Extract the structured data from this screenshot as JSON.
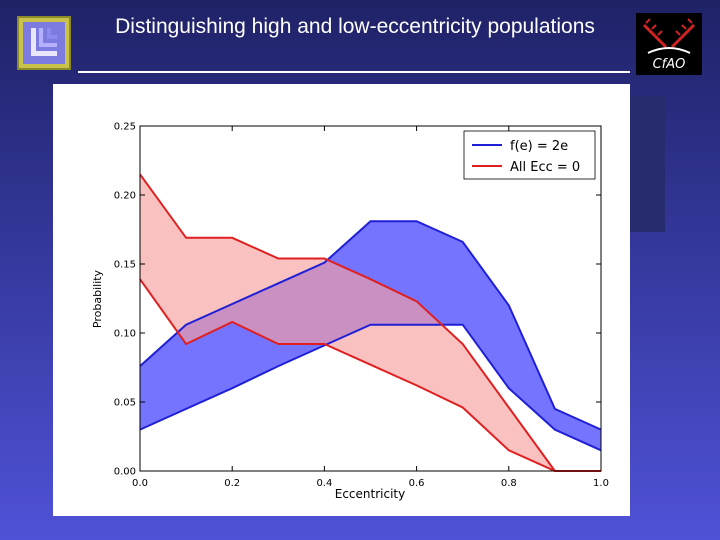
{
  "slide": {
    "title": "Distinguishing high and low-eccentricity populations"
  },
  "logos": {
    "left_icon": "llnl-logo-icon",
    "right_icon": "cfao-logo-icon",
    "right_text": "CfAO"
  },
  "chart_data": {
    "type": "area",
    "xlabel": "Eccentricity",
    "ylabel": "Probability",
    "xlim": [
      0.0,
      1.0
    ],
    "ylim": [
      0.0,
      0.25
    ],
    "xticks": [
      "0.0",
      "0.2",
      "0.4",
      "0.6",
      "0.8",
      "1.0"
    ],
    "yticks": [
      "0.00",
      "0.05",
      "0.10",
      "0.15",
      "0.20",
      "0.25"
    ],
    "grid": false,
    "legend_position": "top-right",
    "series": [
      {
        "name": "f(e) = 2e",
        "color": "#1f1fd6",
        "fill": "#5c5cff",
        "fill_opacity": 0.85,
        "x": [
          0.0,
          0.1,
          0.2,
          0.3,
          0.4,
          0.5,
          0.6,
          0.7,
          0.8,
          0.9,
          1.0
        ],
        "upper": [
          0.076,
          0.106,
          0.121,
          0.136,
          0.151,
          0.181,
          0.181,
          0.166,
          0.12,
          0.045,
          0.03
        ],
        "lower": [
          0.03,
          0.045,
          0.06,
          0.076,
          0.091,
          0.106,
          0.106,
          0.106,
          0.06,
          0.03,
          0.015
        ]
      },
      {
        "name": "All Ecc = 0",
        "color": "#e02020",
        "fill": "#f8a0a0",
        "fill_opacity": 0.65,
        "x": [
          0.0,
          0.1,
          0.2,
          0.3,
          0.4,
          0.5,
          0.6,
          0.7,
          0.8,
          0.9,
          1.0
        ],
        "upper": [
          0.215,
          0.169,
          0.169,
          0.154,
          0.154,
          0.139,
          0.123,
          0.092,
          0.046,
          0.0,
          0.0
        ],
        "lower": [
          0.139,
          0.092,
          0.108,
          0.092,
          0.092,
          0.077,
          0.062,
          0.046,
          0.015,
          0.0,
          0.0
        ]
      }
    ]
  }
}
